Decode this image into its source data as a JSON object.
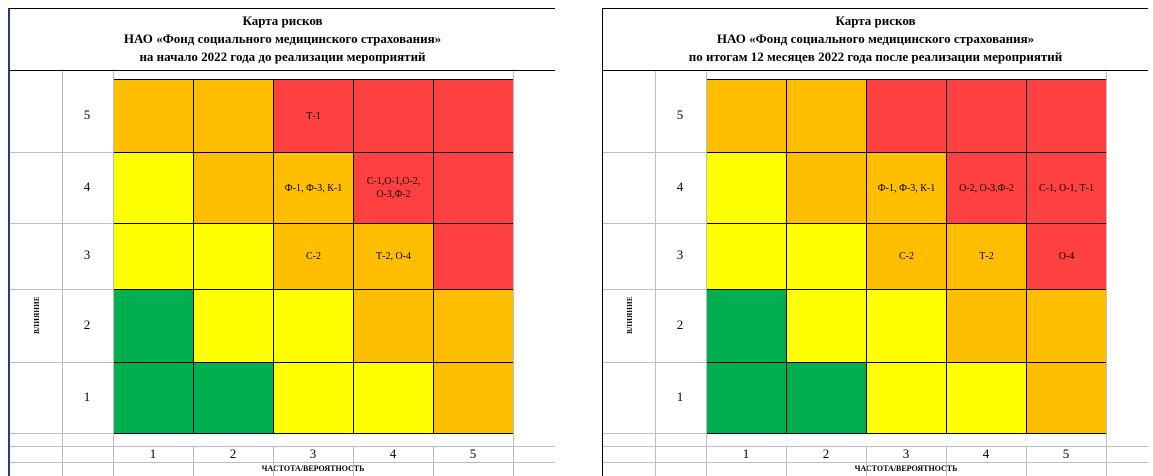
{
  "colors": {
    "red": "#ff4040",
    "orange": "#ffbf00",
    "yellow": "#ffff00",
    "green": "#00b050"
  },
  "left": {
    "title": [
      "Карта рисков",
      "НАО «Фонд социального медицинского страхования»",
      "на начало 2022 года до реализации мероприятий"
    ],
    "y_axis_label": "ВЛИЯНИЕ",
    "x_axis_label": "ЧАСТОТА/ВЕРОЯТНОСТЬ",
    "rows": [
      {
        "impact": "5",
        "cells": [
          {
            "color": "orange",
            "text": ""
          },
          {
            "color": "orange",
            "text": ""
          },
          {
            "color": "red",
            "text": "Т-1"
          },
          {
            "color": "red",
            "text": ""
          },
          {
            "color": "red",
            "text": ""
          }
        ]
      },
      {
        "impact": "4",
        "cells": [
          {
            "color": "yellow",
            "text": ""
          },
          {
            "color": "orange",
            "text": ""
          },
          {
            "color": "orange",
            "text": "Ф-1, Ф-3, К-1"
          },
          {
            "color": "red",
            "text": "С-1,О-1,О-2, О-3,Ф-2"
          },
          {
            "color": "red",
            "text": ""
          }
        ]
      },
      {
        "impact": "3",
        "cells": [
          {
            "color": "yellow",
            "text": ""
          },
          {
            "color": "yellow",
            "text": ""
          },
          {
            "color": "orange",
            "text": "С-2"
          },
          {
            "color": "orange",
            "text": "Т-2, О-4"
          },
          {
            "color": "red",
            "text": ""
          }
        ]
      },
      {
        "impact": "2",
        "cells": [
          {
            "color": "green",
            "text": ""
          },
          {
            "color": "yellow",
            "text": ""
          },
          {
            "color": "yellow",
            "text": ""
          },
          {
            "color": "orange",
            "text": ""
          },
          {
            "color": "orange",
            "text": ""
          }
        ]
      },
      {
        "impact": "1",
        "cells": [
          {
            "color": "green",
            "text": ""
          },
          {
            "color": "green",
            "text": ""
          },
          {
            "color": "yellow",
            "text": ""
          },
          {
            "color": "yellow",
            "text": ""
          },
          {
            "color": "orange",
            "text": ""
          }
        ]
      }
    ],
    "columns": [
      "1",
      "2",
      "3",
      "4",
      "5"
    ]
  },
  "right": {
    "title": [
      "Карта рисков",
      "НАО «Фонд социального медицинского страхования»",
      "по итогам 12 месяцев 2022 года после реализации мероприятий"
    ],
    "y_axis_label": "ВЛИЯНИЕ",
    "x_axis_label": "ЧАСТОТА/ВЕРОЯТНОСТЬ",
    "rows": [
      {
        "impact": "5",
        "cells": [
          {
            "color": "orange",
            "text": ""
          },
          {
            "color": "orange",
            "text": ""
          },
          {
            "color": "red",
            "text": ""
          },
          {
            "color": "red",
            "text": ""
          },
          {
            "color": "red",
            "text": ""
          }
        ]
      },
      {
        "impact": "4",
        "cells": [
          {
            "color": "yellow",
            "text": ""
          },
          {
            "color": "orange",
            "text": ""
          },
          {
            "color": "orange",
            "text": "Ф-1, Ф-3, К-1"
          },
          {
            "color": "red",
            "text": "О-2, О-3,Ф-2"
          },
          {
            "color": "red",
            "text": "С-1, О-1, Т-1"
          }
        ]
      },
      {
        "impact": "3",
        "cells": [
          {
            "color": "yellow",
            "text": ""
          },
          {
            "color": "yellow",
            "text": ""
          },
          {
            "color": "orange",
            "text": "С-2"
          },
          {
            "color": "orange",
            "text": "Т-2"
          },
          {
            "color": "red",
            "text": "О-4"
          }
        ]
      },
      {
        "impact": "2",
        "cells": [
          {
            "color": "green",
            "text": ""
          },
          {
            "color": "yellow",
            "text": ""
          },
          {
            "color": "yellow",
            "text": ""
          },
          {
            "color": "orange",
            "text": ""
          },
          {
            "color": "orange",
            "text": ""
          }
        ]
      },
      {
        "impact": "1",
        "cells": [
          {
            "color": "green",
            "text": ""
          },
          {
            "color": "green",
            "text": ""
          },
          {
            "color": "yellow",
            "text": ""
          },
          {
            "color": "yellow",
            "text": ""
          },
          {
            "color": "orange",
            "text": ""
          }
        ]
      }
    ],
    "columns": [
      "1",
      "2",
      "3",
      "4",
      "5"
    ]
  }
}
